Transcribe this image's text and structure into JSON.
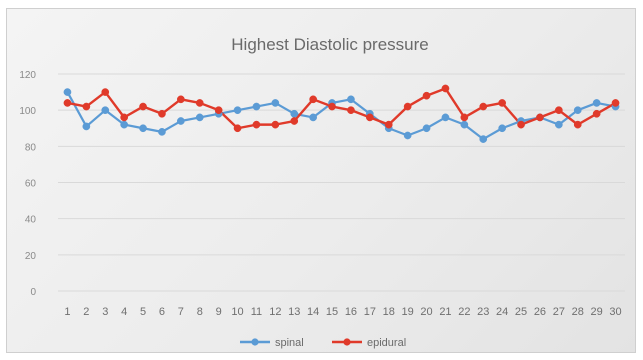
{
  "chart_data": {
    "type": "line",
    "title": "Highest Diastolic pressure",
    "xlabel": "",
    "ylabel": "",
    "ylim": [
      0,
      120
    ],
    "yticks": [
      0,
      20,
      40,
      60,
      80,
      100,
      120
    ],
    "grid": true,
    "legend_position": "bottom",
    "categories": [
      "1",
      "2",
      "3",
      "4",
      "5",
      "6",
      "7",
      "8",
      "9",
      "10",
      "11",
      "12",
      "13",
      "14",
      "15",
      "16",
      "17",
      "18",
      "19",
      "20",
      "21",
      "22",
      "23",
      "24",
      "25",
      "26",
      "27",
      "28",
      "29",
      "30"
    ],
    "series": [
      {
        "name": "spinal",
        "color": "#5b9bd5",
        "values": [
          110,
          91,
          100,
          92,
          90,
          88,
          94,
          96,
          98,
          100,
          102,
          104,
          98,
          96,
          104,
          106,
          98,
          90,
          86,
          90,
          96,
          92,
          84,
          90,
          94,
          96,
          92,
          100,
          104,
          102
        ]
      },
      {
        "name": "epidural",
        "color": "#e03a2a",
        "values": [
          104,
          102,
          110,
          96,
          102,
          98,
          106,
          104,
          100,
          90,
          92,
          92,
          94,
          106,
          102,
          100,
          96,
          92,
          102,
          108,
          112,
          96,
          102,
          104,
          92,
          96,
          100,
          92,
          98,
          104
        ]
      }
    ]
  }
}
